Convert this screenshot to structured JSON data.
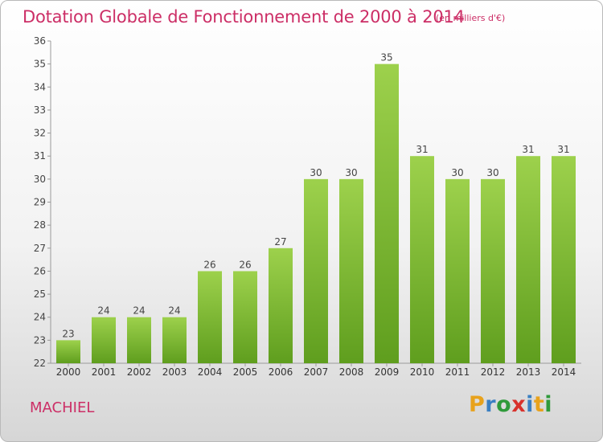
{
  "title": "Dotation Globale de Fonctionnement de 2000 à 2014",
  "unit": "(en milliers d'€)",
  "commune": "MACHIEL",
  "logo": {
    "letters": [
      "P",
      "r",
      "o",
      "x",
      "i",
      "t",
      "i"
    ],
    "colors": [
      "#e8a21c",
      "#3a7fc2",
      "#2f9a3a",
      "#d8312c",
      "#3a7fc2",
      "#e8a21c",
      "#2f9a3a"
    ]
  },
  "colors": {
    "bar_top": "#9dd14c",
    "bar_bottom": "#5f9e1e",
    "title": "#cc2e66"
  },
  "chart_data": {
    "type": "bar",
    "categories": [
      "2000",
      "2001",
      "2002",
      "2003",
      "2004",
      "2005",
      "2006",
      "2007",
      "2008",
      "2009",
      "2010",
      "2011",
      "2012",
      "2013",
      "2014"
    ],
    "values": [
      23,
      24,
      24,
      24,
      26,
      26,
      27,
      30,
      30,
      35,
      31,
      30,
      30,
      31,
      31
    ],
    "data_labels": [
      "23",
      "24",
      "24",
      "24",
      "26",
      "26",
      "27",
      "30",
      "30",
      "35",
      "31",
      "30",
      "30",
      "31",
      "31"
    ],
    "yticks": [
      "22",
      "23",
      "24",
      "25",
      "26",
      "27",
      "28",
      "29",
      "30",
      "31",
      "32",
      "33",
      "34",
      "35",
      "36"
    ],
    "ylim": [
      22,
      36
    ],
    "grid": false
  }
}
